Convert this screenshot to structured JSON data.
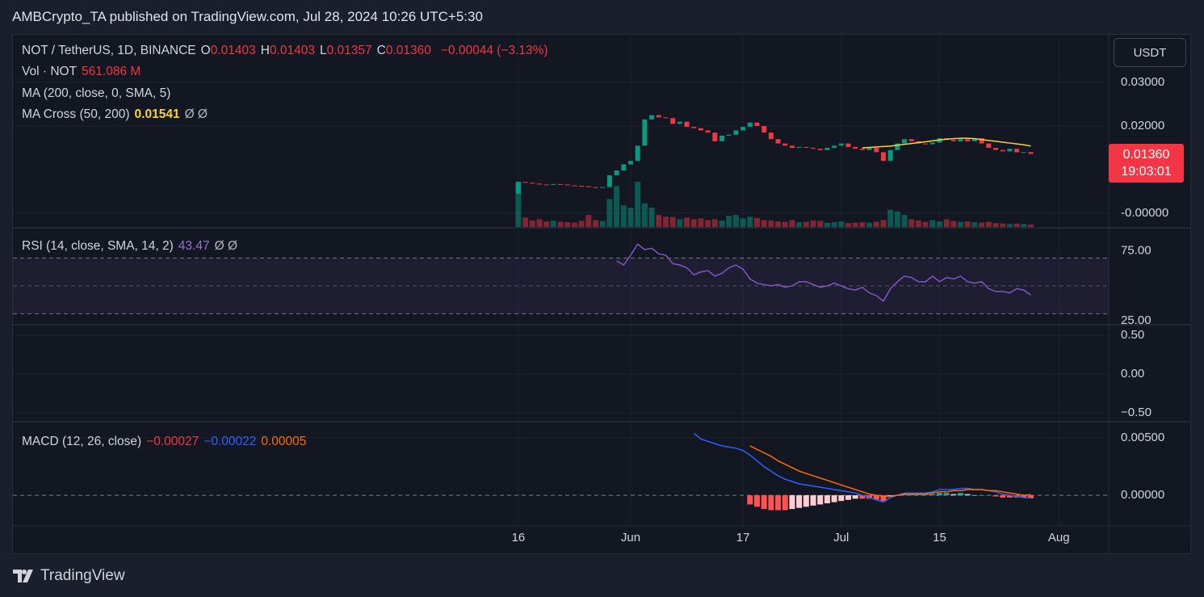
{
  "header": {
    "byline": "AMBCrypto_TA published on TradingView.com, Jul 28, 2024 10:26 UTC+5:30"
  },
  "legend": {
    "symbol": "NOT / TetherUS, 1D, BINANCE",
    "ohlc": [
      {
        "k": "O",
        "v": "0.01403"
      },
      {
        "k": "H",
        "v": "0.01403"
      },
      {
        "k": "L",
        "v": "0.01357"
      },
      {
        "k": "C",
        "v": "0.01360"
      }
    ],
    "change": "−0.00044 (−3.13%)",
    "vol_label": "Vol · NOT",
    "vol_value": "561.086 M",
    "ma": "MA (200, close, 0, SMA, 5)",
    "ma_cross": "MA Cross (50, 200)",
    "ma_cross_value": "0.01541",
    "hidden": "Ø  Ø",
    "rsi": "RSI (14, close, SMA, 14, 2)",
    "rsi_value": "43.47",
    "macd": "MACD (12, 26, close)",
    "macd_values": [
      "−0.00027",
      "−0.00022",
      "0.00005"
    ]
  },
  "price_axis": {
    "currency": "USDT",
    "last_price": "0.01360",
    "countdown": "19:03:01"
  },
  "footer": {
    "brand": "TradingView"
  },
  "chart_data": [
    {
      "type": "candlestick",
      "up_color": "#089981",
      "down_color": "#f23645",
      "ma_color": "#f7d33b",
      "open": 0.0045,
      "close": [
        0.0072,
        0.007,
        0.0068,
        0.0066,
        0.0065,
        0.0067,
        0.0066,
        0.0064,
        0.0063,
        0.0062,
        0.006,
        0.0059,
        0.006,
        0.0087,
        0.0098,
        0.0112,
        0.012,
        0.0155,
        0.0215,
        0.0225,
        0.022,
        0.0218,
        0.0205,
        0.021,
        0.0198,
        0.0195,
        0.019,
        0.0185,
        0.0165,
        0.0178,
        0.018,
        0.019,
        0.0198,
        0.0208,
        0.02,
        0.0185,
        0.017,
        0.016,
        0.0155,
        0.015,
        0.0152,
        0.015,
        0.0148,
        0.0145,
        0.015,
        0.0155,
        0.016,
        0.0152,
        0.0148,
        0.0145,
        0.015,
        0.014,
        0.012,
        0.0145,
        0.016,
        0.017,
        0.0165,
        0.016,
        0.0158,
        0.0162,
        0.0172,
        0.0168,
        0.0165,
        0.017,
        0.0165,
        0.0172,
        0.016,
        0.015,
        0.0145,
        0.0142,
        0.0148,
        0.014,
        0.01403,
        0.0136
      ],
      "volume": [
        10500,
        2200,
        1500,
        1800,
        1300,
        1500,
        1200,
        1100,
        1000,
        1400,
        2800,
        1600,
        1400,
        6500,
        9500,
        5000,
        4500,
        10500,
        5500,
        4500,
        2800,
        2400,
        2300,
        1800,
        2200,
        1800,
        2000,
        1600,
        1800,
        1500,
        2600,
        2800,
        2000,
        2400,
        2100,
        1600,
        1500,
        1300,
        1200,
        1600,
        1100,
        1200,
        1500,
        1400,
        1000,
        1100,
        1300,
        900,
        1000,
        1100,
        1000,
        1200,
        1600,
        4000,
        3600,
        2800,
        1800,
        1500,
        1200,
        1600,
        1300,
        1800,
        1400,
        1200,
        1300,
        1100,
        1000,
        1200,
        900,
        800,
        700,
        800,
        700,
        561.086
      ],
      "vlim": [
        0,
        15000
      ],
      "ma_cross": [
        null,
        null,
        null,
        null,
        null,
        null,
        null,
        null,
        null,
        null,
        null,
        null,
        null,
        null,
        null,
        null,
        null,
        null,
        null,
        null,
        null,
        null,
        null,
        null,
        null,
        null,
        null,
        null,
        null,
        null,
        null,
        null,
        null,
        null,
        null,
        null,
        null,
        null,
        null,
        null,
        null,
        null,
        null,
        null,
        null,
        null,
        null,
        null,
        null,
        0.015,
        0.0151,
        0.0152,
        0.0153,
        0.0154,
        0.0156,
        0.0158,
        0.016,
        0.0162,
        0.0164,
        0.0166,
        0.0168,
        0.017,
        0.0171,
        0.0172,
        0.0172,
        0.0171,
        0.0169,
        0.0167,
        0.0165,
        0.0163,
        0.0161,
        0.0159,
        0.0157,
        0.01541
      ],
      "ylim": [
        -0.00315,
        0.04056
      ],
      "yticks": [
        {
          "value": 0.03,
          "label": "0.03000"
        },
        {
          "value": 0.02,
          "label": "0.02000"
        },
        {
          "value": 0,
          "label": "-0.00000"
        }
      ],
      "xlim": [
        -72,
        84.1
      ],
      "xticks": [
        {
          "value": 0,
          "label": "16"
        },
        {
          "value": 16,
          "label": "Jun"
        },
        {
          "value": 32,
          "label": "17"
        },
        {
          "value": 46,
          "label": "Jul"
        },
        {
          "value": 60,
          "label": "15"
        },
        {
          "value": 77,
          "label": "Aug"
        }
      ],
      "grid": true
    },
    {
      "type": "line",
      "color": "#7e57c2",
      "values": [
        null,
        null,
        null,
        null,
        null,
        null,
        null,
        null,
        null,
        null,
        null,
        null,
        null,
        null,
        68,
        65,
        72,
        80,
        76,
        77,
        73,
        72,
        66,
        65,
        63,
        58,
        60,
        61,
        57,
        59,
        63,
        65,
        62,
        55,
        52,
        51,
        50,
        51,
        49,
        50,
        53,
        53,
        51,
        49,
        50,
        52,
        50,
        48,
        47,
        49,
        45,
        43,
        39,
        48,
        53,
        57,
        56,
        53,
        53,
        57,
        53,
        56,
        55,
        57,
        53,
        52,
        53,
        48,
        46,
        46,
        45,
        48,
        47,
        43.47
      ],
      "band": [
        30,
        70
      ],
      "midline": 50,
      "ylim": [
        22.7,
        91.1
      ],
      "yticks": [
        {
          "value": 75,
          "label": "75.00"
        },
        {
          "value": 25,
          "label": "25.00"
        }
      ],
      "grid": false
    },
    {
      "type": "empty",
      "ylim": [
        -0.604,
        0.625
      ],
      "yticks": [
        {
          "value": 0.5,
          "label": "0.50"
        },
        {
          "value": 0,
          "label": "0.00"
        },
        {
          "value": -0.5,
          "label": "−0.50"
        }
      ],
      "grid": true
    },
    {
      "type": "macd",
      "macd_color": "#2962ff",
      "signal_color": "#ff6d00",
      "macd": [
        null,
        null,
        null,
        null,
        null,
        null,
        null,
        null,
        null,
        null,
        null,
        null,
        null,
        null,
        null,
        null,
        null,
        null,
        null,
        null,
        null,
        null,
        null,
        null,
        null,
        0.0054,
        0.0049,
        0.0047,
        0.0045,
        0.0043,
        0.0042,
        0.0041,
        0.0039,
        0.0035,
        0.003,
        0.0025,
        0.0021,
        0.0017,
        0.0014,
        0.0012,
        0.001,
        0.0009,
        0.0008,
        0.0007,
        0.0006,
        0.0005,
        0.0004,
        0.0003,
        0.0002,
        0.0,
        -0.0002,
        -0.0004,
        -0.0006,
        -0.0002,
        0.0,
        0.0002,
        0.0002,
        0.0002,
        0.0002,
        0.0003,
        0.0005,
        0.0005,
        0.0005,
        0.0006,
        0.0006,
        0.0005,
        0.0005,
        0.0004,
        0.0003,
        0.0001,
        0.0,
        -0.0001,
        -0.0002,
        -0.00022
      ],
      "signal": [
        null,
        null,
        null,
        null,
        null,
        null,
        null,
        null,
        null,
        null,
        null,
        null,
        null,
        null,
        null,
        null,
        null,
        null,
        null,
        null,
        null,
        null,
        null,
        null,
        null,
        null,
        null,
        null,
        null,
        null,
        null,
        null,
        null,
        0.0043,
        0.004,
        0.0037,
        0.0034,
        0.003,
        0.0027,
        0.0024,
        0.0021,
        0.0019,
        0.0017,
        0.0015,
        0.0013,
        0.0011,
        0.0009,
        0.0007,
        0.0005,
        0.0003,
        0.0001,
        0.0,
        -0.0001,
        -0.0001,
        0.0,
        0.0001,
        0.0001,
        0.0001,
        0.0001,
        0.0002,
        0.0003,
        0.0003,
        0.0004,
        0.0004,
        0.0005,
        0.0005,
        0.0005,
        0.0004,
        0.0004,
        0.0003,
        0.0002,
        0.0001,
        0.0,
        5e-05
      ],
      "histogram": [
        null,
        null,
        null,
        null,
        null,
        null,
        null,
        null,
        null,
        null,
        null,
        null,
        null,
        null,
        null,
        null,
        null,
        null,
        null,
        null,
        null,
        null,
        null,
        null,
        null,
        null,
        null,
        null,
        null,
        null,
        null,
        null,
        null,
        -0.0008,
        -0.001,
        -0.0012,
        -0.0013,
        -0.0013,
        -0.0013,
        -0.0012,
        -0.0011,
        -0.001,
        -0.0009,
        -0.0008,
        -0.0007,
        -0.0006,
        -0.0005,
        -0.0004,
        -0.0003,
        -0.0003,
        -0.0003,
        -0.0004,
        -0.0005,
        -0.0001,
        0.0,
        0.0001,
        0.0001,
        0.0001,
        0.0001,
        0.0001,
        0.0002,
        0.0002,
        0.0001,
        0.0002,
        0.0001,
        0.0,
        0.0,
        0.0,
        -0.0001,
        -0.0002,
        -0.0002,
        -0.0002,
        -0.0002,
        -0.00027
      ],
      "ylim": [
        -0.0026,
        0.00634
      ],
      "yticks": [
        {
          "value": 0.005,
          "label": "0.00500"
        },
        {
          "value": 0,
          "label": "0.00000"
        }
      ],
      "grid": true
    }
  ]
}
